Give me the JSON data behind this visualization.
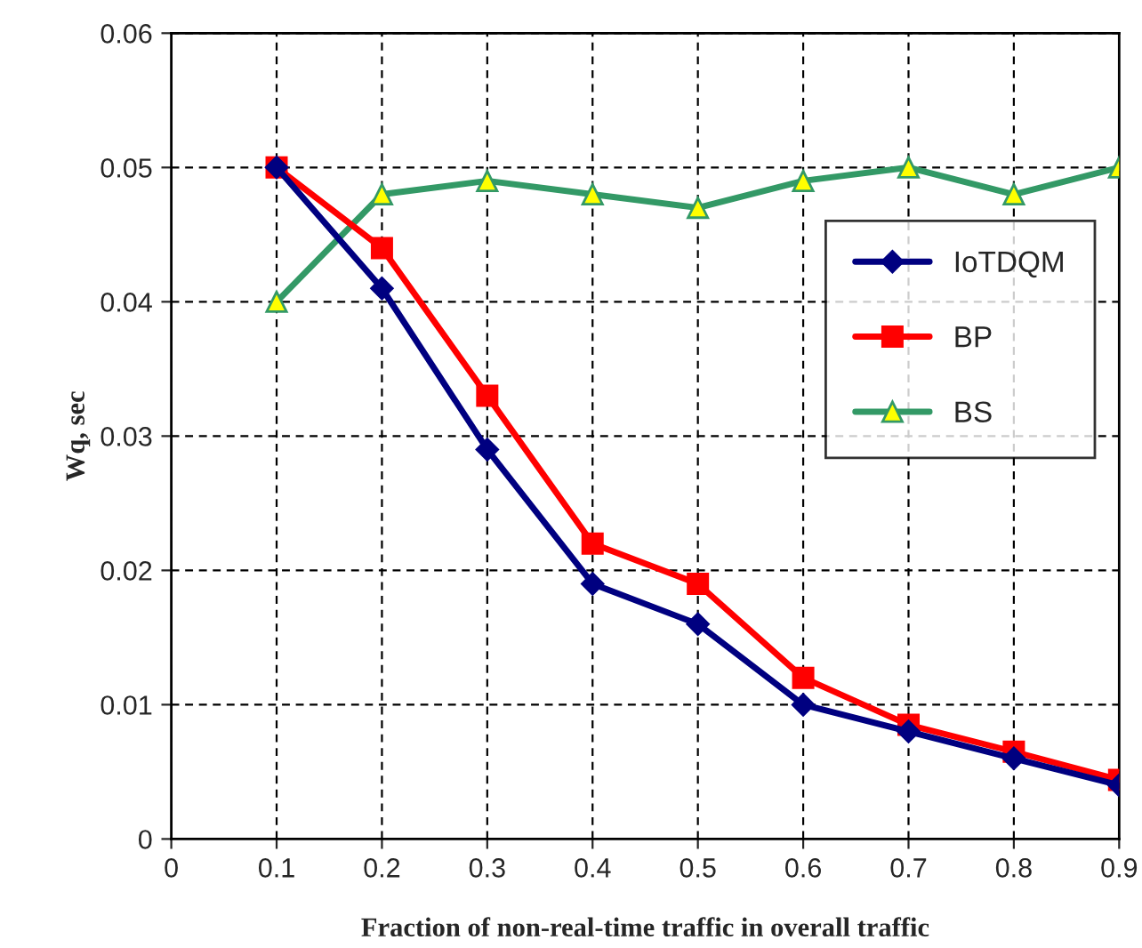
{
  "chart_data": {
    "type": "line",
    "xlabel": "Fraction of non-real-time traffic in overall traffic",
    "ylabel": "Wq, sec",
    "x": [
      0.1,
      0.2,
      0.3,
      0.4,
      0.5,
      0.6,
      0.7,
      0.8,
      0.9
    ],
    "series": [
      {
        "name": "IoTDQM",
        "color": "#000080",
        "marker": "diamond",
        "values": [
          0.05,
          0.041,
          0.029,
          0.019,
          0.016,
          0.01,
          0.008,
          0.006,
          0.004
        ]
      },
      {
        "name": "BP",
        "color": "#ff0000",
        "marker": "square",
        "values": [
          0.05,
          0.044,
          0.033,
          0.022,
          0.019,
          0.012,
          0.0085,
          0.0065,
          0.0044
        ]
      },
      {
        "name": "BS",
        "color": "#339966",
        "marker": "triangle",
        "values": [
          0.04,
          0.048,
          0.049,
          0.048,
          0.047,
          0.049,
          0.05,
          0.048,
          0.05
        ]
      }
    ],
    "xlim": [
      0,
      0.9
    ],
    "xticks": [
      {
        "value": 0,
        "label": "0"
      },
      0.1,
      0.2,
      0.3,
      0.4,
      0.5,
      0.6,
      0.7,
      0.8,
      0.9
    ],
    "ylim": [
      0,
      0.06
    ],
    "yticks": [
      {
        "value": 0,
        "label": "0"
      },
      0.01,
      0.02,
      0.03,
      0.04,
      0.05,
      0.06
    ],
    "grid": true,
    "legend": "right",
    "line_style": "solid"
  }
}
